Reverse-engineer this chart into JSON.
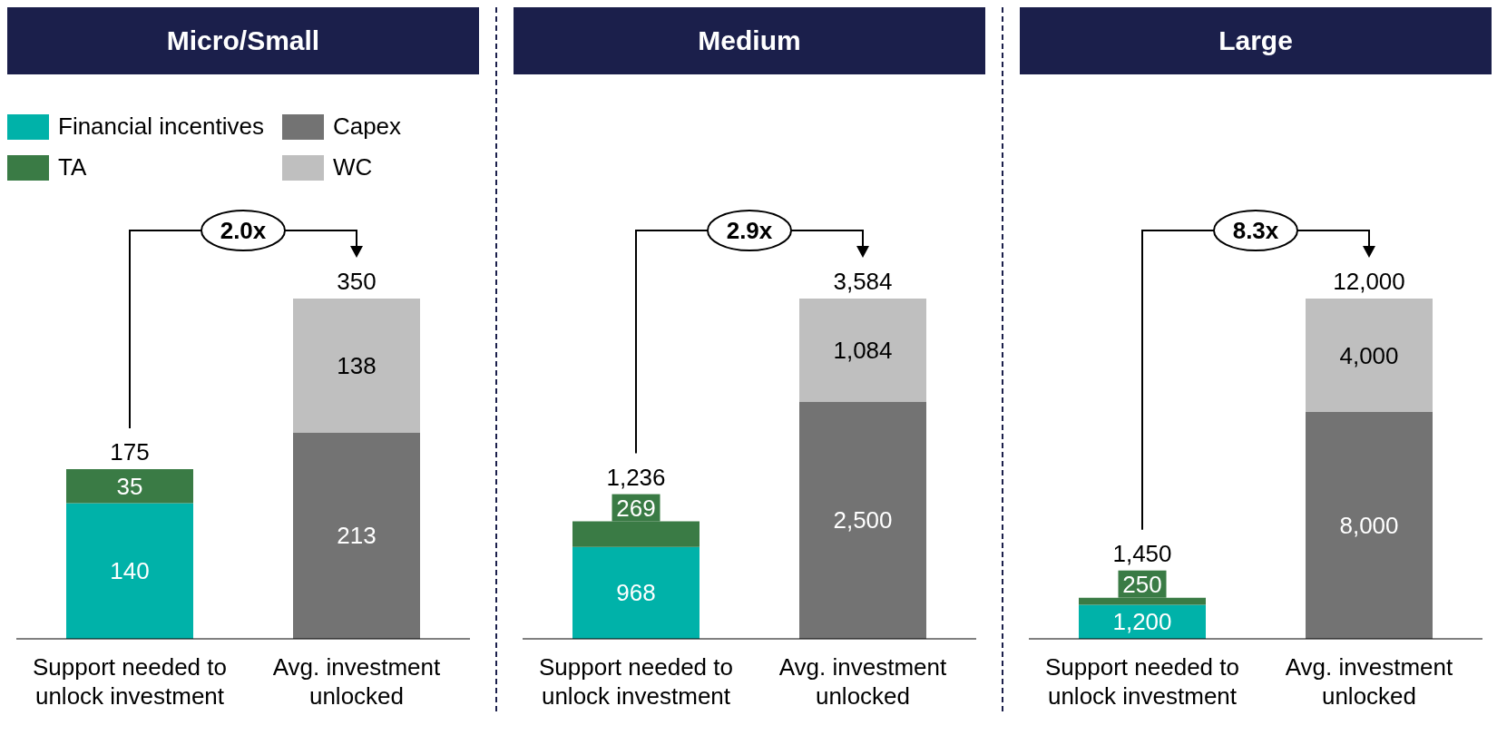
{
  "chart_data": [
    {
      "type": "bar",
      "title": "Micro/Small",
      "stacked": true,
      "legend": "top left",
      "categories": [
        "Support needed to unlock investment",
        "Avg. investment unlocked"
      ],
      "series": [
        {
          "name": "Financial incentives",
          "color": "#00b2a9",
          "values": [
            140,
            null
          ],
          "value_labels": [
            "140",
            null
          ]
        },
        {
          "name": "TA",
          "color": "#3a7b45",
          "values": [
            35,
            null
          ],
          "value_labels": [
            "35",
            null
          ]
        },
        {
          "name": "Capex",
          "color": "#737373",
          "values": [
            null,
            213
          ],
          "value_labels": [
            null,
            "213"
          ]
        },
        {
          "name": "WC",
          "color": "#bfbfbf",
          "values": [
            null,
            138
          ],
          "value_labels": [
            null,
            "138"
          ]
        }
      ],
      "totals": [
        "175",
        "350"
      ],
      "annotations": [
        "2.0x"
      ]
    },
    {
      "type": "bar",
      "title": "Medium",
      "stacked": true,
      "categories": [
        "Support needed to unlock investment",
        "Avg. investment unlocked"
      ],
      "series": [
        {
          "color": "#00b2a9",
          "values": [
            968,
            null
          ],
          "value_labels": [
            "968",
            null
          ]
        },
        {
          "color": "#3a7b45",
          "values": [
            269,
            null
          ],
          "value_labels": [
            "269",
            null
          ]
        },
        {
          "color": "#737373",
          "values": [
            null,
            2500
          ],
          "value_labels": [
            null,
            "2,500"
          ]
        },
        {
          "color": "#bfbfbf",
          "values": [
            null,
            1084
          ],
          "value_labels": [
            null,
            "1,084"
          ]
        }
      ],
      "totals": [
        "1,236",
        "3,584"
      ],
      "annotations": [
        "2.9x"
      ]
    },
    {
      "type": "bar",
      "title": "Large",
      "stacked": true,
      "categories": [
        "Support needed to unlock investment",
        "Avg. investment unlocked"
      ],
      "series": [
        {
          "color": "#00b2a9",
          "values": [
            1200,
            null
          ],
          "value_labels": [
            "1,200",
            null
          ]
        },
        {
          "color": "#3a7b45",
          "values": [
            250,
            null
          ],
          "value_labels": [
            "250",
            null
          ]
        },
        {
          "color": "#737373",
          "values": [
            null,
            8000
          ],
          "value_labels": [
            null,
            "8,000"
          ]
        },
        {
          "color": "#bfbfbf",
          "values": [
            null,
            4000
          ],
          "value_labels": [
            null,
            "4,000"
          ]
        }
      ],
      "totals": [
        "1,450",
        "12,000"
      ],
      "annotations": [
        "8.3x"
      ]
    }
  ]
}
